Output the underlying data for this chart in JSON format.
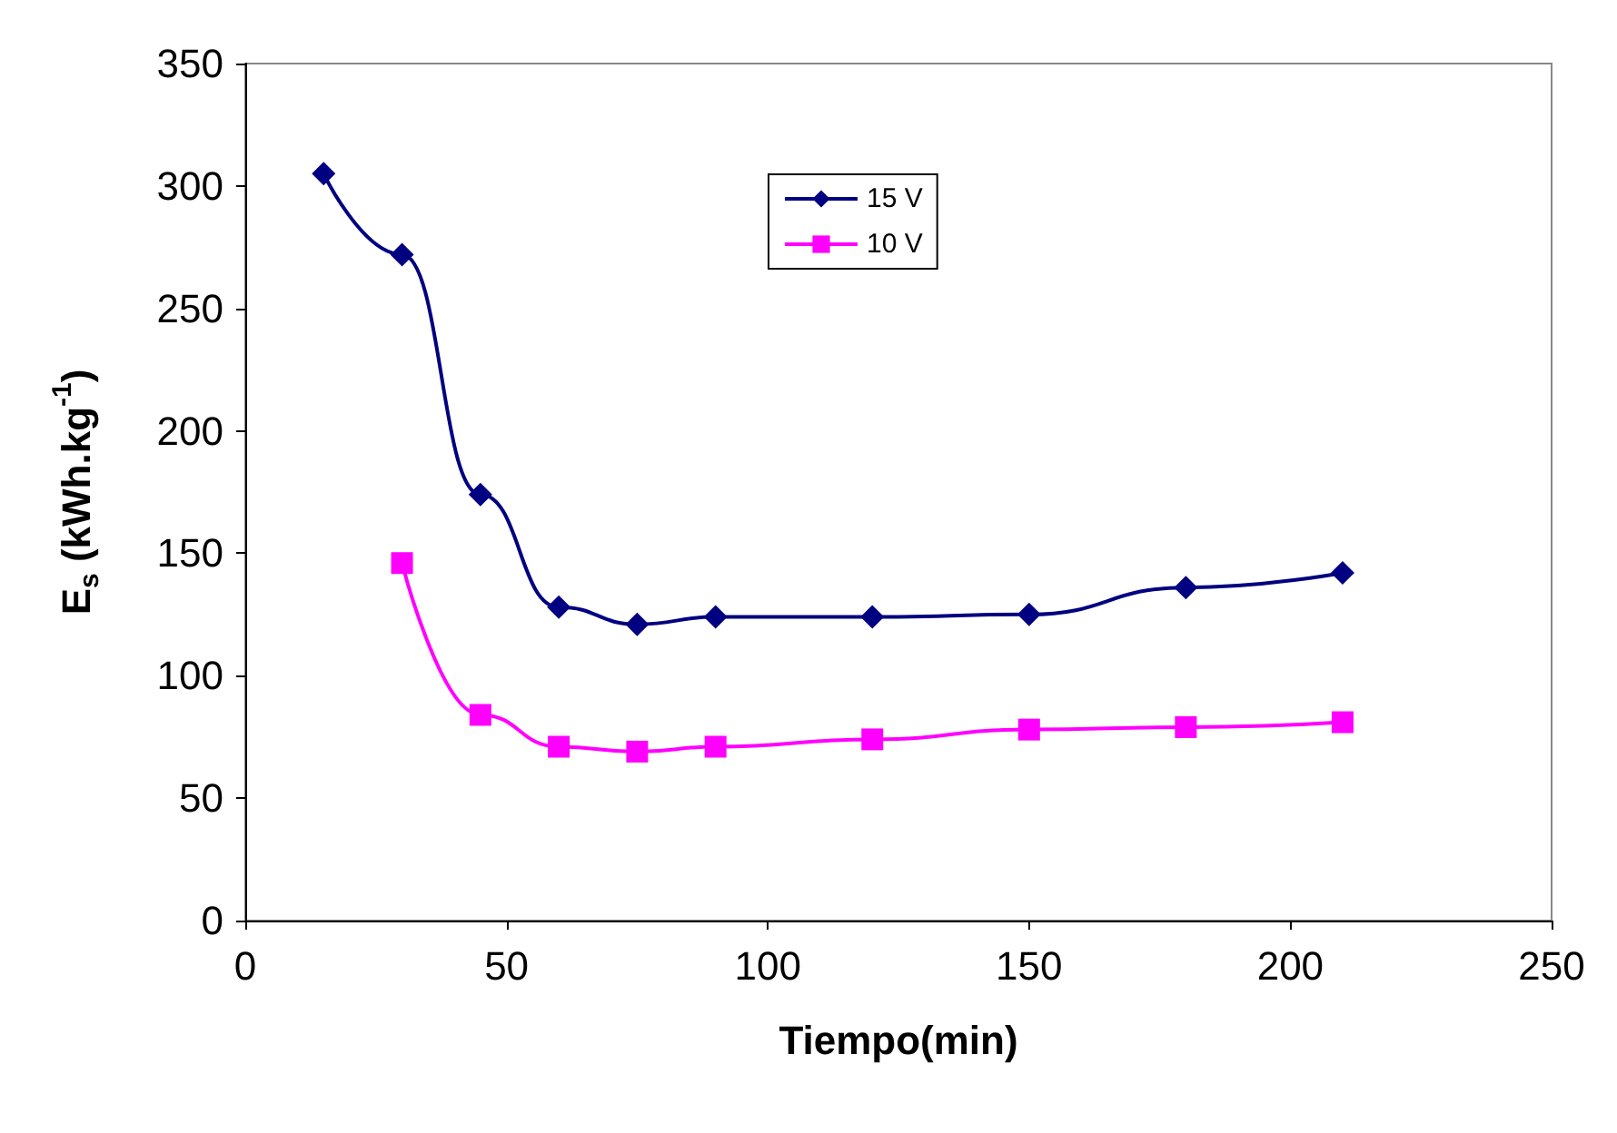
{
  "chart_data": {
    "type": "line",
    "xlabel": "Tiempo(min)",
    "ylabel": "E$_{s}$ (kWh.kg$^{-1}$)",
    "xlim": [
      0,
      250
    ],
    "xticks": [
      0,
      50,
      100,
      150,
      200,
      250
    ],
    "ylim": [
      0,
      350
    ],
    "yticks": [
      0,
      50,
      100,
      150,
      200,
      250,
      300,
      350
    ],
    "grid": false,
    "legend": "top",
    "series": [
      {
        "name": "15 V",
        "color": "#000080",
        "marker": "diamond",
        "x": [
          15,
          30,
          45,
          60,
          75,
          90,
          120,
          150,
          180,
          210
        ],
        "values": [
          305,
          272,
          174,
          128,
          121,
          124,
          124,
          125,
          136,
          142
        ]
      },
      {
        "name": "10 V",
        "color": "#ff00ff",
        "marker": "square",
        "x": [
          30,
          45,
          60,
          75,
          90,
          120,
          150,
          180,
          210
        ],
        "values": [
          146,
          84,
          71,
          69,
          71,
          74,
          78,
          79,
          81
        ]
      }
    ]
  }
}
